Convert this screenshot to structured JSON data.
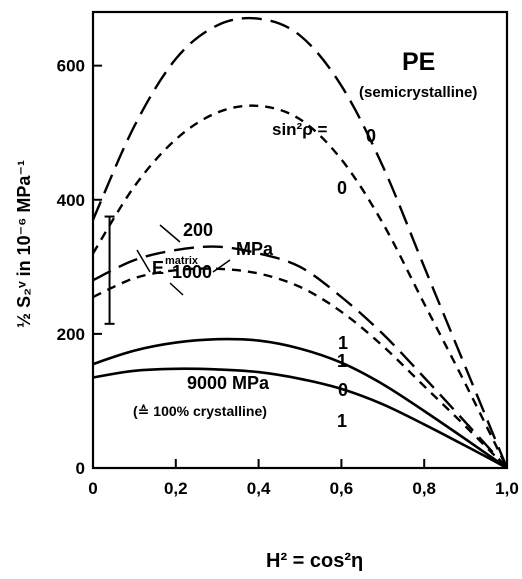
{
  "chart_data": {
    "type": "line",
    "title": "PE",
    "subtitle": "(semicrystalline)",
    "xlabel": "H² = cos²η",
    "ylabel": "½ S₂ᵛ in 10⁻⁶ MPa⁻¹",
    "xlim": [
      0,
      1.0
    ],
    "ylim": [
      0,
      680
    ],
    "xticks": [
      0,
      0.2,
      0.4,
      0.6,
      0.8,
      1.0
    ],
    "xtick_labels": [
      "0",
      "0,2",
      "0,4",
      "0,6",
      "0,8",
      "1,0"
    ],
    "yticks": [
      0,
      200,
      400,
      600
    ],
    "ytick_labels": [
      "0",
      "200",
      "400",
      "600"
    ],
    "grid": false,
    "annotations": {
      "sin2_label": "sin²ρ =",
      "ematrix_label": "E",
      "ematrix_sup": "matrix",
      "e200_label": "200",
      "e1000_label": "1000",
      "mpa_label": "MPa",
      "e9000_label": "9000 MPa",
      "crystalline_label": "(≙ 100% crystalline)",
      "label_0_top": "0",
      "label_0_mid": "0",
      "label_1_a": "1",
      "label_1_b": "1",
      "label_0_low": "0",
      "label_1_low": "1"
    },
    "error_bar": {
      "x": 0.04,
      "y_low": 215,
      "y_high": 375
    },
    "series": [
      {
        "style": "long-dash",
        "x": [
          0,
          0.1,
          0.2,
          0.3,
          0.4,
          0.5,
          0.6,
          0.7,
          0.8,
          0.9,
          1.0
        ],
        "y": [
          370,
          510,
          610,
          660,
          670,
          645,
          570,
          450,
          300,
          150,
          0
        ]
      },
      {
        "style": "short-dash",
        "x": [
          0,
          0.1,
          0.2,
          0.3,
          0.4,
          0.5,
          0.6,
          0.7,
          0.8,
          0.9,
          1.0
        ],
        "y": [
          320,
          420,
          490,
          530,
          540,
          520,
          460,
          365,
          245,
          125,
          0
        ]
      },
      {
        "style": "long-dash",
        "x": [
          0,
          0.1,
          0.2,
          0.3,
          0.4,
          0.5,
          0.6,
          0.7,
          0.8,
          0.9,
          1.0
        ],
        "y": [
          280,
          310,
          325,
          330,
          320,
          300,
          255,
          200,
          135,
          68,
          0
        ]
      },
      {
        "style": "short-dash",
        "x": [
          0,
          0.1,
          0.2,
          0.3,
          0.4,
          0.5,
          0.6,
          0.7,
          0.8,
          0.9,
          1.0
        ],
        "y": [
          255,
          283,
          295,
          297,
          290,
          270,
          233,
          182,
          122,
          62,
          0
        ]
      },
      {
        "style": "solid",
        "x": [
          0,
          0.1,
          0.2,
          0.3,
          0.4,
          0.5,
          0.6,
          0.7,
          0.8,
          0.9,
          1.0
        ],
        "y": [
          155,
          175,
          187,
          192,
          190,
          178,
          157,
          125,
          85,
          43,
          0
        ]
      },
      {
        "style": "solid",
        "x": [
          0,
          0.1,
          0.2,
          0.3,
          0.4,
          0.5,
          0.6,
          0.7,
          0.8,
          0.9,
          1.0
        ],
        "y": [
          135,
          145,
          148,
          147,
          143,
          133,
          118,
          95,
          65,
          33,
          0
        ]
      }
    ]
  }
}
